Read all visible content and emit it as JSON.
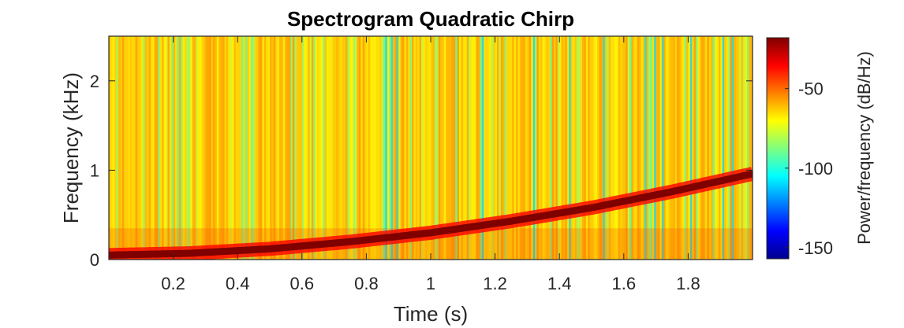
{
  "chart_data": {
    "type": "heatmap",
    "title": "Spectrogram Quadratic Chirp",
    "xlabel": "Time (s)",
    "ylabel": "Frequency (kHz)",
    "xlim": [
      0,
      2
    ],
    "ylim": [
      0,
      2.5
    ],
    "x_ticks": [
      0.2,
      0.4,
      0.6,
      0.8,
      1,
      1.2,
      1.4,
      1.6,
      1.8
    ],
    "x_tick_labels": [
      "0.2",
      "0.4",
      "0.6",
      "0.8",
      "1",
      "1.2",
      "1.4",
      "1.6",
      "1.8"
    ],
    "y_ticks": [
      0,
      1,
      2
    ],
    "y_tick_labels": [
      "0",
      "1",
      "2"
    ],
    "colormap": "jet",
    "colorbar": {
      "label": "Power/frequency (dB/Hz)",
      "limits": [
        -157,
        -18
      ],
      "ticks": [
        -50,
        -100,
        -150
      ],
      "tick_labels": [
        "-50",
        "-100",
        "-150"
      ]
    },
    "chirp_ridge": {
      "description_values": "peak power ridge frequency (kHz) vs time (s)",
      "t": [
        0,
        0.25,
        0.5,
        0.75,
        1.0,
        1.25,
        1.5,
        1.75,
        2.0
      ],
      "f": [
        0.05,
        0.07,
        0.12,
        0.2,
        0.3,
        0.43,
        0.58,
        0.76,
        0.96
      ],
      "peak_power": -18
    },
    "background_power_range": [
      -70,
      -55
    ]
  }
}
